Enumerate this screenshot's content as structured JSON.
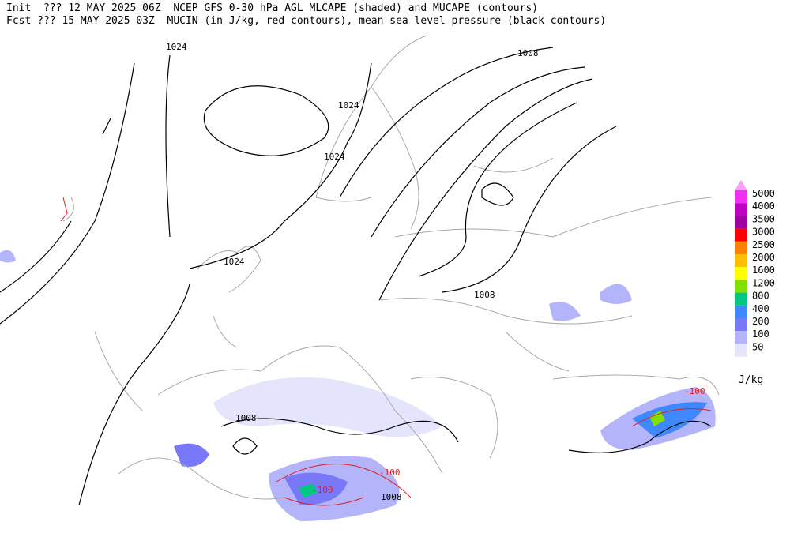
{
  "header": {
    "line1": "Init  ??? 12 MAY 2025 06Z  NCEP GFS 0-30 hPa AGL MLCAPE (shaded) and MUCAPE (contours)",
    "line2": "Fcst ??? 15 MAY 2025 03Z  MUCIN (in J/kg, red contours), mean sea level pressure (black contours)"
  },
  "contour_labels": [
    1024,
    1024,
    1024,
    1024,
    1008,
    1008,
    1008,
    1008,
    -100,
    -100,
    -100
  ],
  "legend": {
    "unit": "J/kg",
    "levels": [
      5000,
      4000,
      3500,
      3000,
      2500,
      2000,
      1600,
      1200,
      800,
      400,
      200,
      100,
      50
    ],
    "colors": [
      "#f030f0",
      "#c000c0",
      "#a000a0",
      "#ff0000",
      "#ff8000",
      "#ffc000",
      "#ffff00",
      "#80e000",
      "#00c880",
      "#4088ff",
      "#7878f8",
      "#b4b4fa",
      "#e4e4fc"
    ],
    "top_color": "#f8a0f8"
  }
}
